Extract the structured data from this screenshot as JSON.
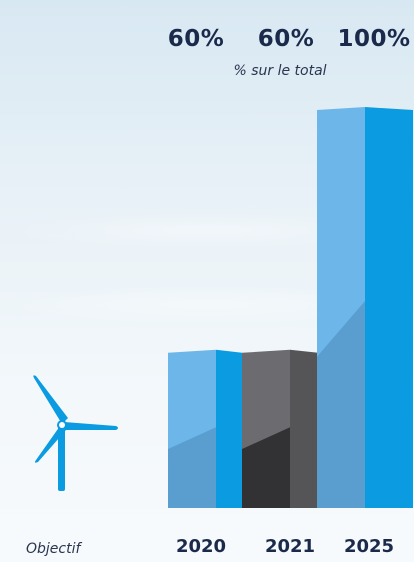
{
  "chart_data": {
    "type": "bar",
    "categories": [
      "2020",
      "2021",
      "2025"
    ],
    "values": [
      60,
      60,
      100
    ],
    "value_labels": [
      "60%",
      "60%",
      "100%"
    ],
    "title": "",
    "subtitle": "% sur le total",
    "ylabel": "",
    "ylim": [
      0,
      100
    ],
    "series_colors": {
      "blue_front_light": "#6cb6ea",
      "blue_front_dark": "#5a9ecf",
      "blue_side": "#0a9be0",
      "gray_front_light": "#6c6c70",
      "gray_front_dark": "#323234",
      "gray_side": "#555557"
    }
  },
  "footer": {
    "objectif_label": "Objectif"
  },
  "icons": {
    "turbine": "wind-turbine-icon"
  }
}
